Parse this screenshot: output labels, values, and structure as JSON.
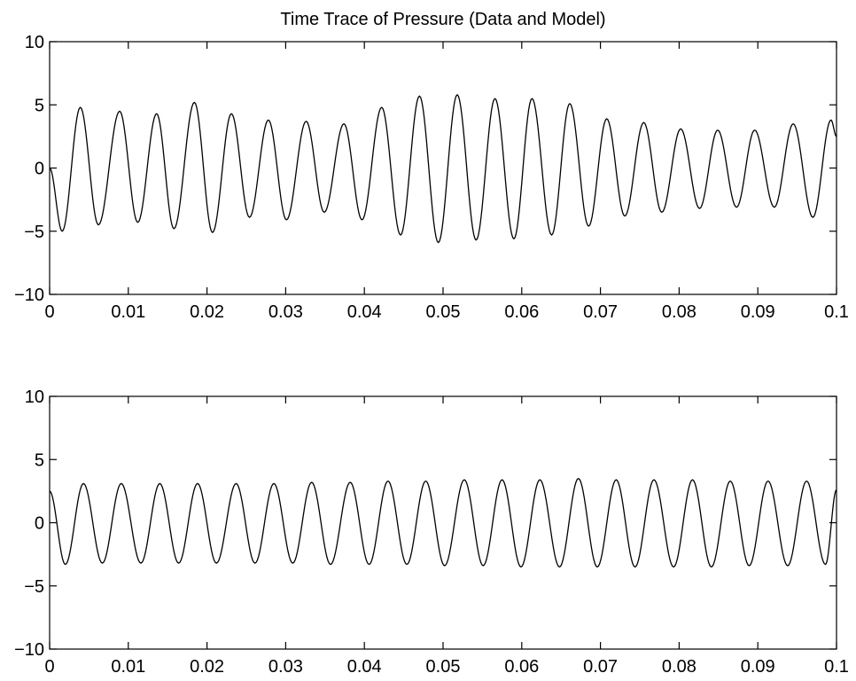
{
  "chart_data": [
    {
      "type": "line",
      "title": "Time Trace of Pressure (Data and Model)",
      "xlabel": "",
      "ylabel": "",
      "xlim": [
        0,
        0.1
      ],
      "ylim": [
        -10,
        10
      ],
      "x_ticks": [
        0,
        0.01,
        0.02,
        0.03,
        0.04,
        0.05,
        0.06,
        0.07,
        0.08,
        0.09,
        0.1
      ],
      "x_tick_labels": [
        "0",
        "0.01",
        "0.02",
        "0.03",
        "0.04",
        "0.05",
        "0.06",
        "0.07",
        "0.08",
        "0.09",
        "0.1"
      ],
      "y_ticks": [
        10,
        5,
        0,
        -5,
        -10
      ],
      "y_tick_labels": [
        "10",
        "5",
        "0",
        "−10"
      ],
      "y_tick_labels_full": [
        "10",
        "5",
        "0",
        "−5",
        "−10"
      ],
      "grid": false,
      "color": "#000000",
      "series": [
        {
          "x": [
            0,
            0.0016,
            0.0039,
            0.0062,
            0.0089,
            0.0112,
            0.0136,
            0.0158,
            0.0184,
            0.0207,
            0.0231,
            0.0254,
            0.0278,
            0.0301,
            0.0326,
            0.0349,
            0.0374,
            0.0397,
            0.0422,
            0.0446,
            0.047,
            0.0494,
            0.0518,
            0.0542,
            0.0566,
            0.059,
            0.0613,
            0.0638,
            0.0661,
            0.0685,
            0.0708,
            0.0731,
            0.0755,
            0.0778,
            0.0802,
            0.0826,
            0.0849,
            0.0873,
            0.0896,
            0.0921,
            0.0945,
            0.097,
            0.0993,
            0.1
          ],
          "values": [
            0,
            -5.0,
            4.8,
            -4.5,
            4.5,
            -4.3,
            4.3,
            -4.8,
            5.2,
            -5.1,
            4.3,
            -3.9,
            3.8,
            -4.1,
            3.7,
            -3.5,
            3.5,
            -4.1,
            4.8,
            -5.3,
            5.7,
            -5.9,
            5.8,
            -5.7,
            5.5,
            -5.6,
            5.5,
            -5.3,
            5.1,
            -4.6,
            3.9,
            -3.8,
            3.6,
            -3.5,
            3.1,
            -3.2,
            3.0,
            -3.1,
            3.0,
            -3.1,
            3.5,
            -3.9,
            3.8,
            2.5
          ]
        }
      ]
    },
    {
      "type": "line",
      "title": "",
      "xlabel": "",
      "ylabel": "",
      "xlim": [
        0,
        0.1
      ],
      "ylim": [
        -10,
        10
      ],
      "x_ticks": [
        0,
        0.01,
        0.02,
        0.03,
        0.04,
        0.05,
        0.06,
        0.07,
        0.08,
        0.09,
        0.1
      ],
      "x_tick_labels": [
        "0",
        "0.01",
        "0.02",
        "0.03",
        "0.04",
        "0.05",
        "0.06",
        "0.07",
        "0.08",
        "0.09",
        "0.1"
      ],
      "y_ticks": [
        10,
        5,
        0,
        -5,
        -10
      ],
      "y_tick_labels": [
        "10",
        "5",
        "0",
        "−5",
        "−10"
      ],
      "grid": false,
      "color": "#000000",
      "series": [
        {
          "x": [
            0,
            0.002,
            0.0043,
            0.0067,
            0.0091,
            0.0116,
            0.014,
            0.0164,
            0.0188,
            0.0212,
            0.0237,
            0.0261,
            0.0285,
            0.0309,
            0.0333,
            0.0357,
            0.0382,
            0.0406,
            0.043,
            0.0454,
            0.0478,
            0.0502,
            0.0527,
            0.0551,
            0.0575,
            0.0599,
            0.0623,
            0.0648,
            0.0672,
            0.0696,
            0.072,
            0.0744,
            0.0768,
            0.0793,
            0.0817,
            0.0841,
            0.0865,
            0.0889,
            0.0913,
            0.0938,
            0.0962,
            0.0986,
            0.1
          ],
          "values": [
            2.5,
            -3.3,
            3.1,
            -3.2,
            3.1,
            -3.2,
            3.1,
            -3.2,
            3.1,
            -3.2,
            3.1,
            -3.2,
            3.1,
            -3.2,
            3.2,
            -3.3,
            3.2,
            -3.3,
            3.3,
            -3.3,
            3.3,
            -3.4,
            3.4,
            -3.4,
            3.4,
            -3.5,
            3.4,
            -3.5,
            3.5,
            -3.5,
            3.4,
            -3.5,
            3.4,
            -3.5,
            3.4,
            -3.5,
            3.3,
            -3.4,
            3.3,
            -3.4,
            3.3,
            -3.3,
            2.6
          ]
        }
      ]
    }
  ]
}
